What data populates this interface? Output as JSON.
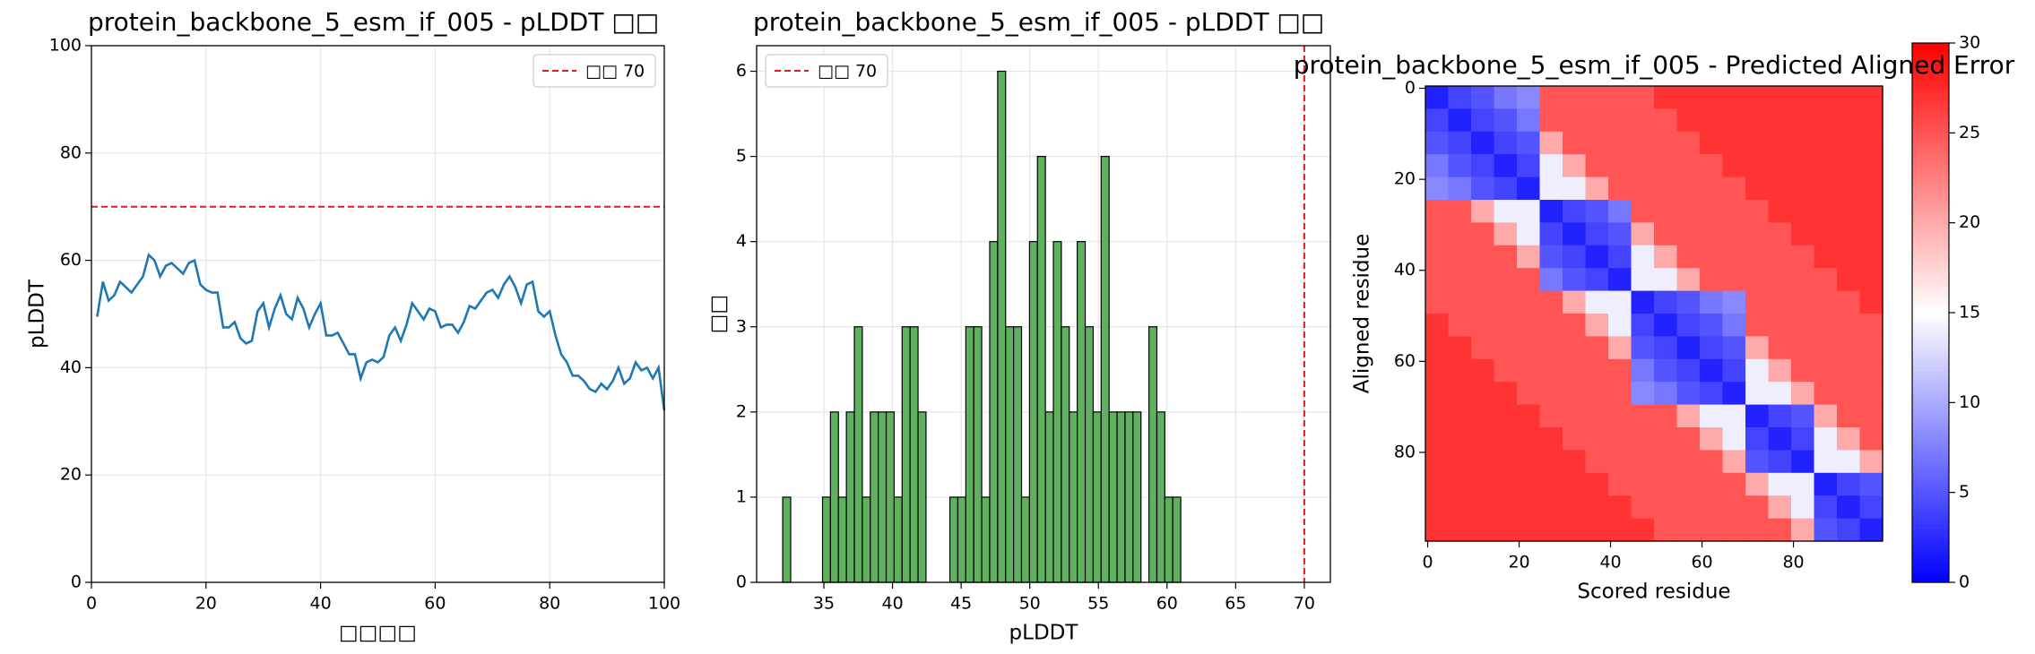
{
  "chart_data": [
    {
      "type": "line",
      "title": "protein_backbone_5_esm_if_005 - pLDDT □□",
      "xlabel": "□□□□",
      "ylabel": "pLDDT",
      "x": [
        1,
        2,
        3,
        4,
        5,
        6,
        7,
        8,
        9,
        10,
        11,
        12,
        13,
        14,
        15,
        16,
        17,
        18,
        19,
        20,
        21,
        22,
        23,
        24,
        25,
        26,
        27,
        28,
        29,
        30,
        31,
        32,
        33,
        34,
        35,
        36,
        37,
        38,
        39,
        40,
        41,
        42,
        43,
        44,
        45,
        46,
        47,
        48,
        49,
        50,
        51,
        52,
        53,
        54,
        55,
        56,
        57,
        58,
        59,
        60,
        61,
        62,
        63,
        64,
        65,
        66,
        67,
        68,
        69,
        70,
        71,
        72,
        73,
        74,
        75,
        76,
        77,
        78,
        79,
        80,
        81,
        82,
        83,
        84,
        85,
        86,
        87,
        88,
        89,
        90,
        91,
        92,
        93,
        94,
        95,
        96,
        97,
        98,
        99,
        100
      ],
      "values": [
        49.5,
        56,
        52.5,
        53.5,
        56,
        55,
        54,
        55.5,
        57,
        61,
        60,
        57,
        59,
        59.5,
        58.5,
        57.5,
        59.5,
        60,
        55.5,
        54.5,
        54,
        54,
        47.5,
        47.5,
        48.5,
        45.5,
        44.5,
        45,
        50.5,
        52,
        47.5,
        51,
        53.5,
        50,
        49,
        53,
        51,
        47.5,
        50,
        52,
        46,
        46,
        46.5,
        44.5,
        42.5,
        42.5,
        38,
        41,
        41.5,
        41,
        42,
        46,
        47.5,
        45,
        48,
        52,
        50.5,
        49,
        51,
        50.5,
        47.5,
        48,
        48,
        46.5,
        48.5,
        51.5,
        51,
        52.5,
        54,
        54.5,
        53,
        55.5,
        57,
        55,
        52,
        55.5,
        56,
        50.5,
        49.5,
        50.5,
        46,
        42.5,
        41,
        38.5,
        38.5,
        37.5,
        36,
        35.5,
        37,
        36,
        37.5,
        40,
        37,
        38,
        41,
        39.5,
        40,
        38,
        40,
        32
      ],
      "color": "#1f77b4",
      "reference_line": {
        "axis": "y",
        "value": 70,
        "label": "□□ 70",
        "color": "#e41a1c"
      },
      "xlim": [
        0,
        100
      ],
      "xticks": [
        0,
        20,
        40,
        60,
        80,
        100
      ],
      "ylim": [
        0,
        100
      ],
      "yticks": [
        0,
        20,
        40,
        60,
        80,
        100
      ],
      "grid": true,
      "legend": "upper-right"
    },
    {
      "type": "histogram",
      "title": "protein_backbone_5_esm_if_005 - pLDDT □□",
      "xlabel": "pLDDT",
      "ylabel": "□□",
      "bins": [
        32,
        32.58,
        33.16,
        33.74,
        34.32,
        34.9,
        35.48,
        36.06,
        36.64,
        37.22,
        37.8,
        38.38,
        38.96,
        39.54,
        40.12,
        40.7,
        41.28,
        41.86,
        42.44,
        43.02,
        43.6,
        44.18,
        44.76,
        45.34,
        45.92,
        46.5,
        47.08,
        47.66,
        48.24,
        48.82,
        49.4,
        49.98,
        50.56,
        51.14,
        51.72,
        52.3,
        52.88,
        53.46,
        54.04,
        54.62,
        55.2,
        55.78,
        56.36,
        56.94,
        57.52,
        58.1,
        58.68,
        59.26,
        59.84,
        60.42,
        61
      ],
      "values": [
        1,
        0,
        0,
        0,
        0,
        1,
        2,
        1,
        2,
        3,
        1,
        2,
        2,
        2,
        1,
        3,
        3,
        2,
        0,
        0,
        0,
        1,
        1,
        3,
        3,
        1,
        4,
        6,
        3,
        3,
        1,
        4,
        5,
        2,
        4,
        3,
        2,
        4,
        3,
        2,
        5,
        2,
        2,
        2,
        2,
        0,
        3,
        2,
        1,
        1
      ],
      "color": "#5fb15f",
      "edgecolor": "#000000",
      "reference_line": {
        "axis": "x",
        "value": 70,
        "label": "□□ 70",
        "color": "#e41a1c"
      },
      "xlim": [
        30.1,
        71.9
      ],
      "xticks": [
        35,
        40,
        45,
        50,
        55,
        60,
        65,
        70
      ],
      "ylim": [
        0,
        6.3
      ],
      "yticks": [
        0,
        1,
        2,
        3,
        4,
        5,
        6
      ],
      "grid": true,
      "legend": "upper-left"
    },
    {
      "type": "heatmap",
      "title": "protein_backbone_5_esm_if_005 - Predicted Aligned Error",
      "xlabel": "Scored residue",
      "ylabel": "Aligned residue",
      "x": [
        0,
        5,
        10,
        15,
        20,
        25,
        30,
        35,
        40,
        45,
        50,
        55,
        60,
        65,
        70,
        75,
        80,
        85,
        90,
        95
      ],
      "y": [
        0,
        5,
        10,
        15,
        20,
        25,
        30,
        35,
        40,
        45,
        50,
        55,
        60,
        65,
        70,
        75,
        80,
        85,
        90,
        95
      ],
      "z": [
        [
          2,
          4,
          5,
          7,
          8,
          25,
          25,
          25,
          25,
          25,
          27,
          27,
          27,
          27,
          27,
          27,
          27,
          27,
          27,
          27
        ],
        [
          4,
          2,
          4,
          5,
          7,
          25,
          25,
          25,
          25,
          25,
          25,
          27,
          27,
          27,
          27,
          27,
          27,
          27,
          27,
          27
        ],
        [
          5,
          4,
          2,
          4,
          5,
          20,
          25,
          25,
          25,
          25,
          25,
          25,
          27,
          27,
          27,
          27,
          27,
          27,
          27,
          27
        ],
        [
          7,
          5,
          4,
          2,
          4,
          14,
          20,
          25,
          25,
          25,
          25,
          25,
          25,
          27,
          27,
          27,
          27,
          27,
          27,
          27
        ],
        [
          8,
          7,
          5,
          4,
          2,
          14,
          14,
          20,
          25,
          25,
          25,
          25,
          25,
          25,
          27,
          27,
          27,
          27,
          27,
          27
        ],
        [
          25,
          25,
          20,
          14,
          14,
          2,
          4,
          5,
          7,
          25,
          25,
          25,
          25,
          25,
          25,
          27,
          27,
          27,
          27,
          27
        ],
        [
          25,
          25,
          25,
          20,
          14,
          4,
          2,
          4,
          5,
          20,
          25,
          25,
          25,
          25,
          25,
          25,
          27,
          27,
          27,
          27
        ],
        [
          25,
          25,
          25,
          25,
          20,
          5,
          4,
          2,
          4,
          14,
          20,
          25,
          25,
          25,
          25,
          25,
          25,
          27,
          27,
          27
        ],
        [
          25,
          25,
          25,
          25,
          25,
          7,
          5,
          4,
          2,
          14,
          14,
          20,
          25,
          25,
          25,
          25,
          25,
          25,
          27,
          27
        ],
        [
          25,
          25,
          25,
          25,
          25,
          25,
          20,
          14,
          14,
          2,
          4,
          5,
          7,
          8,
          25,
          25,
          25,
          25,
          25,
          27
        ],
        [
          27,
          25,
          25,
          25,
          25,
          25,
          25,
          20,
          14,
          4,
          2,
          4,
          5,
          7,
          25,
          25,
          25,
          25,
          25,
          25
        ],
        [
          27,
          27,
          25,
          25,
          25,
          25,
          25,
          25,
          20,
          5,
          4,
          2,
          4,
          5,
          20,
          25,
          25,
          25,
          25,
          25
        ],
        [
          27,
          27,
          27,
          25,
          25,
          25,
          25,
          25,
          25,
          7,
          5,
          4,
          2,
          4,
          14,
          20,
          25,
          25,
          25,
          25
        ],
        [
          27,
          27,
          27,
          27,
          25,
          25,
          25,
          25,
          25,
          8,
          7,
          5,
          4,
          2,
          14,
          14,
          20,
          25,
          25,
          25
        ],
        [
          27,
          27,
          27,
          27,
          27,
          25,
          25,
          25,
          25,
          25,
          25,
          20,
          14,
          14,
          2,
          4,
          5,
          20,
          25,
          25
        ],
        [
          27,
          27,
          27,
          27,
          27,
          27,
          25,
          25,
          25,
          25,
          25,
          25,
          20,
          14,
          4,
          2,
          4,
          14,
          20,
          25
        ],
        [
          27,
          27,
          27,
          27,
          27,
          27,
          27,
          25,
          25,
          25,
          25,
          25,
          25,
          20,
          5,
          4,
          2,
          14,
          14,
          20
        ],
        [
          27,
          27,
          27,
          27,
          27,
          27,
          27,
          27,
          25,
          25,
          25,
          25,
          25,
          25,
          20,
          14,
          14,
          2,
          4,
          5
        ],
        [
          27,
          27,
          27,
          27,
          27,
          27,
          27,
          27,
          27,
          25,
          25,
          25,
          25,
          25,
          25,
          20,
          14,
          4,
          2,
          4
        ],
        [
          27,
          27,
          27,
          27,
          27,
          27,
          27,
          27,
          27,
          27,
          25,
          25,
          25,
          25,
          25,
          25,
          20,
          5,
          4,
          2
        ]
      ],
      "xlim": [
        -0.5,
        99.5
      ],
      "xticks": [
        0,
        20,
        40,
        60,
        80
      ],
      "ylim": [
        99.5,
        -0.5
      ],
      "yticks": [
        0,
        20,
        40,
        60,
        80
      ],
      "grid": false,
      "colormap": "bwr",
      "colorbar": {
        "lim": [
          0,
          30
        ],
        "ticks": [
          0,
          5,
          10,
          15,
          20,
          25,
          30
        ]
      }
    }
  ]
}
